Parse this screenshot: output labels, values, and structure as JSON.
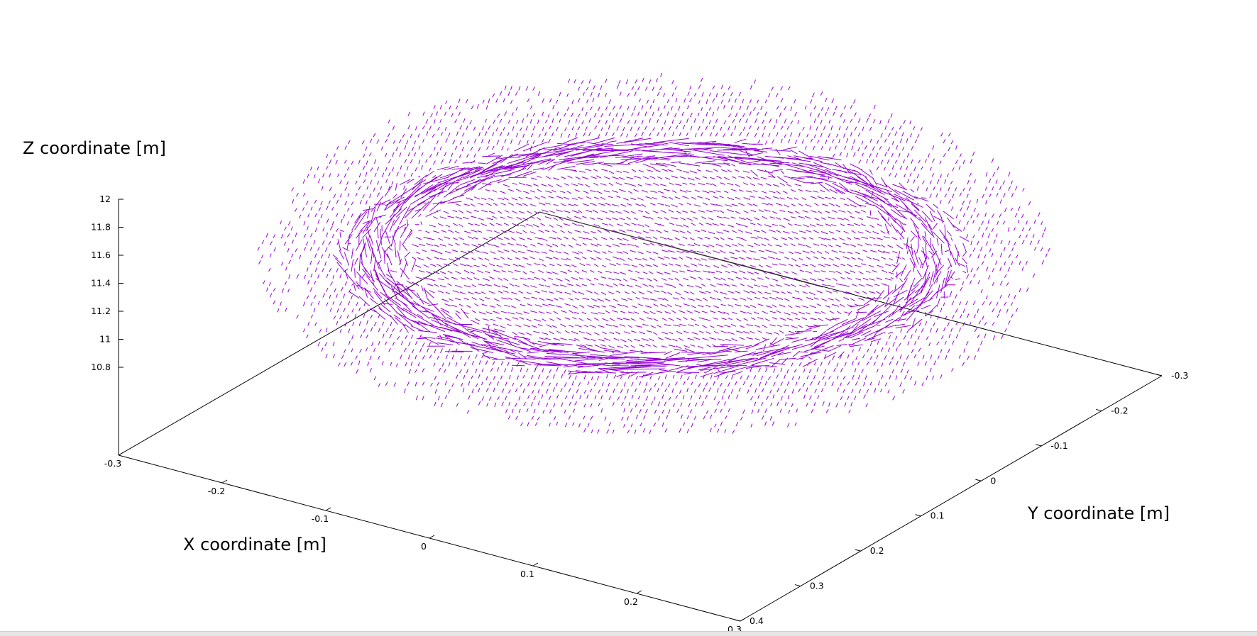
{
  "chart_data": {
    "type": "vector-field-3d",
    "title": "",
    "xlabel": "X coordinate [m]",
    "ylabel": "Y coordinate [m]",
    "zlabel": "Z coordinate [m]",
    "x_ticks": [
      "-0.3",
      "-0.2",
      "-0.1",
      "0",
      "0.1",
      "0.2",
      "0.3"
    ],
    "y_ticks": [
      "0.4",
      "0.3",
      "0.2",
      "0.1",
      "0",
      "-0.1",
      "-0.2",
      "-0.3"
    ],
    "z_ticks": [
      "12",
      "11.8",
      "11.6",
      "11.4",
      "11.2",
      "11",
      "10.8"
    ],
    "xlim": [
      -0.3,
      0.3
    ],
    "ylim": [
      -0.3,
      0.4
    ],
    "zlim": [
      10.8,
      12
    ],
    "grid": false,
    "legend": "none",
    "vector_color": "#9400d3",
    "description_of_field": [
      {
        "region": "outer grid",
        "magnitude": "small",
        "direction": "uniform diagonal"
      },
      {
        "region": "ring boundary",
        "magnitude": "large",
        "direction": "tangential / swirling"
      },
      {
        "region": "interior",
        "magnitude": "small",
        "direction": "aligned with x"
      }
    ]
  },
  "colors": {
    "axis": "#000000",
    "vectors": "#9400d3",
    "background": "#ffffff"
  }
}
